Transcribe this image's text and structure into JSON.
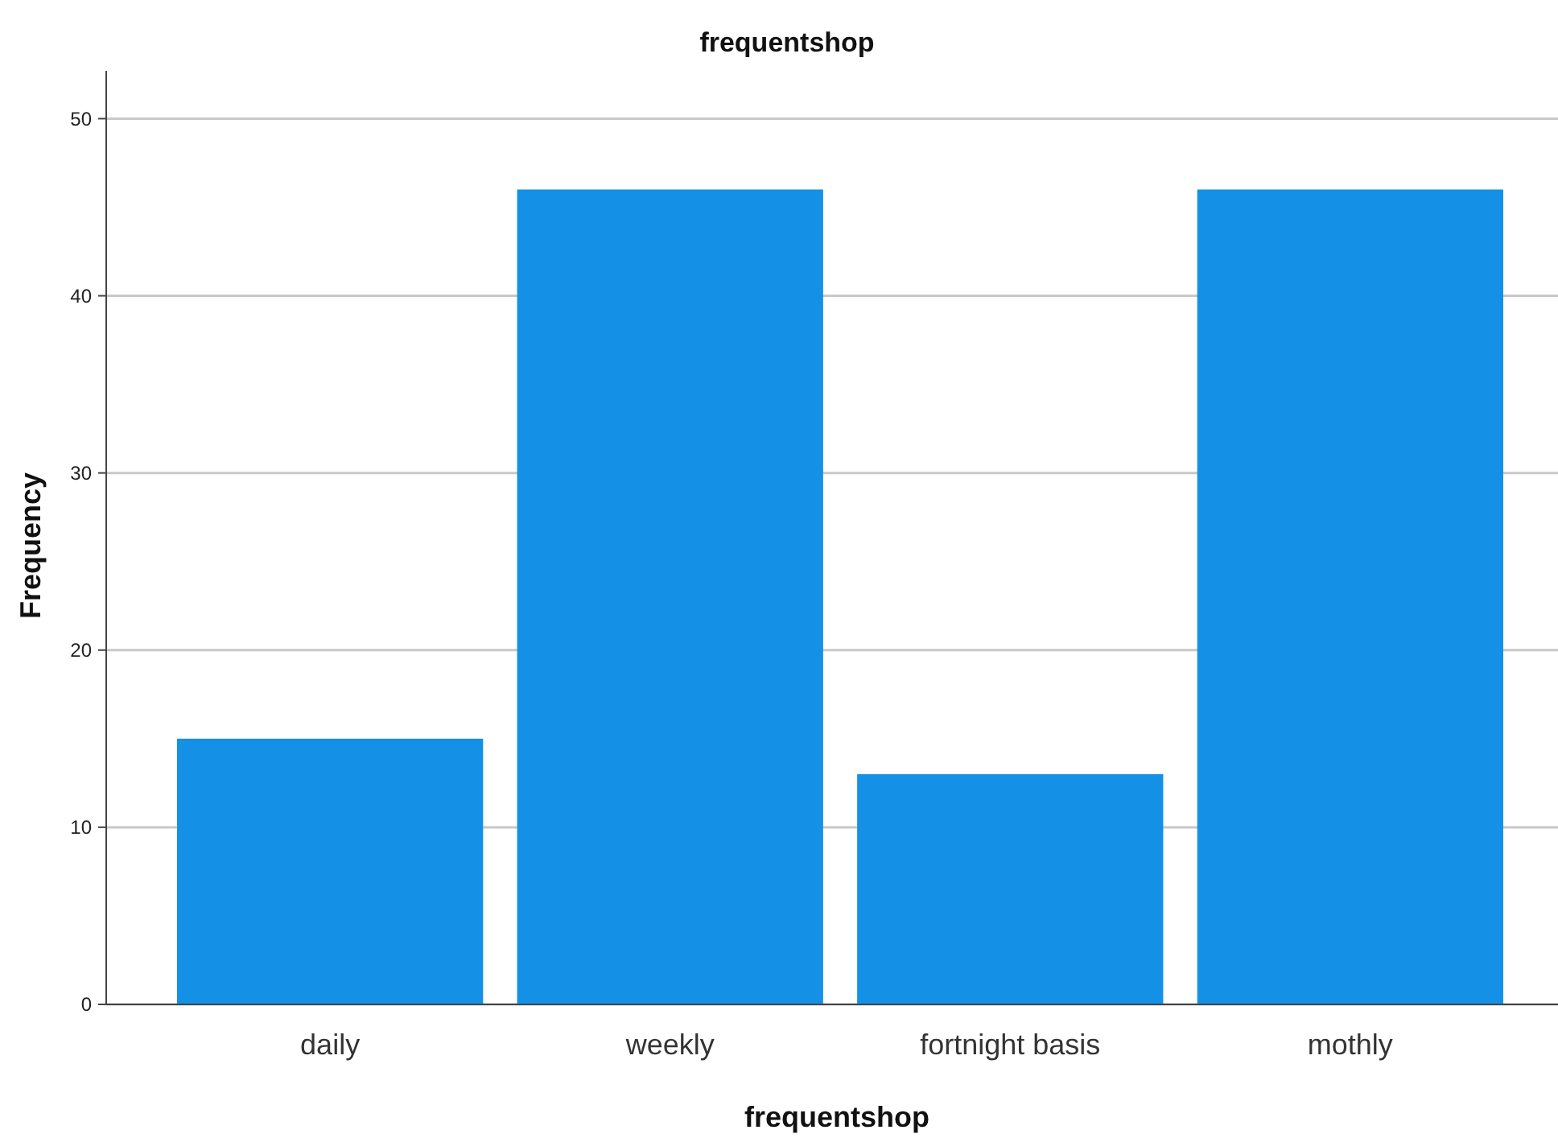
{
  "chart_data": {
    "type": "bar",
    "title": "frequentshop",
    "xlabel": "frequentshop",
    "ylabel": "Frequency",
    "categories": [
      "daily",
      "weekly",
      "fortnight basis",
      "mothly"
    ],
    "values": [
      15,
      46,
      13,
      46
    ],
    "color": "#1491e6",
    "ylim": [
      0,
      52.7
    ],
    "yticks": [
      0,
      10,
      20,
      30,
      40,
      50
    ],
    "grid": "y"
  }
}
